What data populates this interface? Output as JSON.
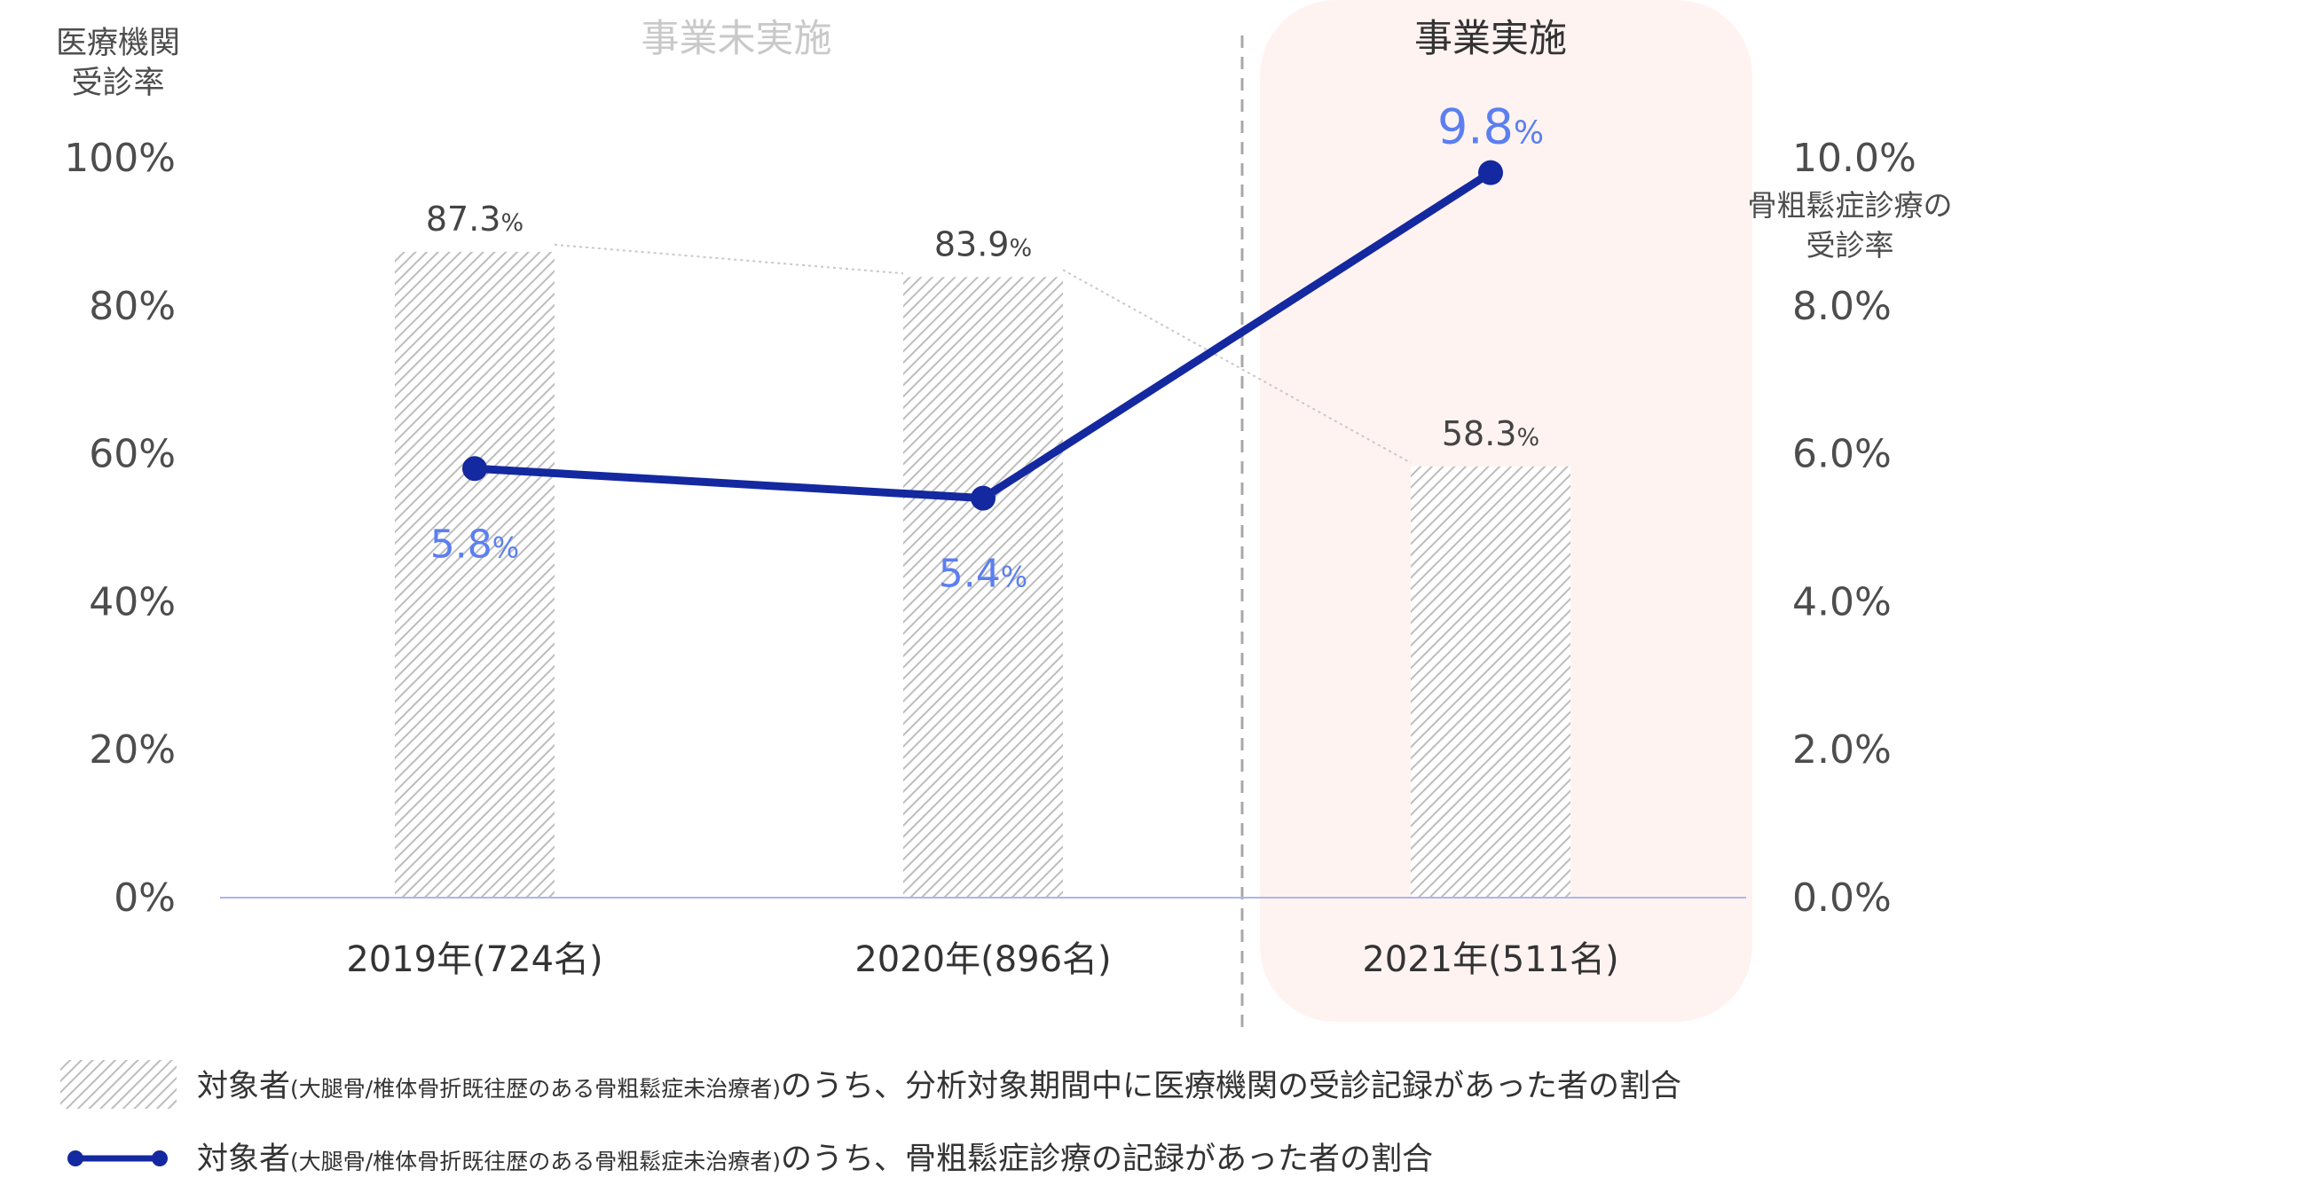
{
  "labels": {
    "y_left_title_line1": "医療機関",
    "y_left_title_line2": "受診率",
    "y_right_title_line1": "骨粗鬆症診療の",
    "y_right_title_line2": "受診率",
    "period_before": "事業未実施",
    "period_after": "事業実施",
    "percent_sign": "%"
  },
  "legend": {
    "bar_label_main": "対象者",
    "bar_label_note": "(大腿骨/椎体骨折既往歴のある骨粗鬆症未治療者)",
    "bar_label_rest": "のうち、分析対象期間中に医療機関の受診記録があった者の割合",
    "line_label_main": "対象者",
    "line_label_note": "(大腿骨/椎体骨折既往歴のある骨粗鬆症未治療者)",
    "line_label_rest": "のうち、骨粗鬆症診療の記録があった者の割合"
  },
  "colors": {
    "line": "#1428a0",
    "line_label": "#5b7ff0",
    "bar_hatch": "#bdbdbd",
    "highlight_bg": "#fff3f2",
    "axis_text": "#4d4d4d",
    "title_muted": "#c9c9c9",
    "baseline": "#aab6ee"
  },
  "chart_data": {
    "type": "bar+line",
    "categories": [
      "2019年(724名)",
      "2020年(896名)",
      "2021年(511名)"
    ],
    "series": [
      {
        "type": "bar",
        "axis": "left",
        "values": [
          87.3,
          83.9,
          58.3
        ],
        "labels": [
          "87.3",
          "83.9",
          "58.3"
        ]
      },
      {
        "type": "line",
        "axis": "right",
        "values": [
          5.8,
          5.4,
          9.8
        ],
        "labels": [
          "5.8",
          "5.4",
          "9.8"
        ]
      }
    ],
    "y_left": {
      "range": [
        0,
        100
      ],
      "ticks": [
        "0%",
        "20%",
        "40%",
        "60%",
        "80%",
        "100%"
      ]
    },
    "y_right": {
      "range": [
        0,
        10
      ],
      "ticks": [
        "0.0%",
        "2.0%",
        "4.0%",
        "6.0%",
        "8.0%",
        "10.0%"
      ]
    },
    "highlighted_categories": [
      "2021年(511名)"
    ],
    "grid": false
  }
}
